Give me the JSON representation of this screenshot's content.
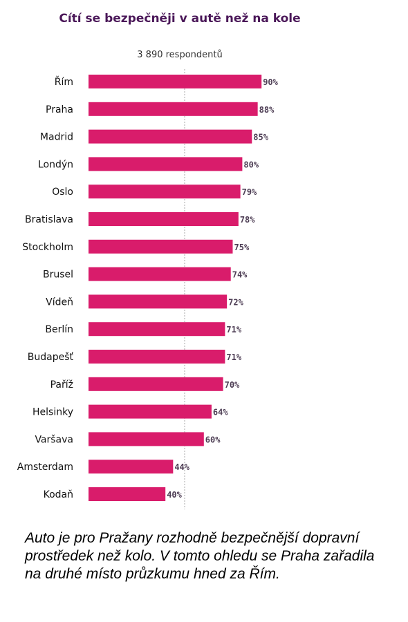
{
  "chart_data": {
    "type": "bar",
    "orientation": "horizontal",
    "title": "Cítí se bezpečněji v autě než na kole",
    "subtitle": "3 890 respondentů",
    "categories": [
      "Řím",
      "Praha",
      "Madrid",
      "Londýn",
      "Oslo",
      "Bratislava",
      "Stockholm",
      "Brusel",
      "Vídeň",
      "Berlín",
      "Budapešť",
      "Paříž",
      "Helsinky",
      "Varšava",
      "Amsterdam",
      "Kodaň"
    ],
    "values": [
      90,
      88,
      85,
      80,
      79,
      78,
      75,
      74,
      72,
      71,
      71,
      70,
      64,
      60,
      44,
      40
    ],
    "value_labels": [
      "90%",
      "88%",
      "85%",
      "80%",
      "79%",
      "78%",
      "75%",
      "74%",
      "72%",
      "71%",
      "71%",
      "70%",
      "64%",
      "60%",
      "44%",
      "40%"
    ],
    "xlim": [
      0,
      100
    ],
    "reference_line": 50,
    "grid": false,
    "bar_color": "#d91c6b",
    "reference_line_color": "#aaaaaa"
  },
  "caption": "Auto je pro Pražany rozhodně bezpečnější dopravní prostředek než kolo. V tomto ohledu se Praha zařadila na druhé místo průzkumu hned za Řím."
}
